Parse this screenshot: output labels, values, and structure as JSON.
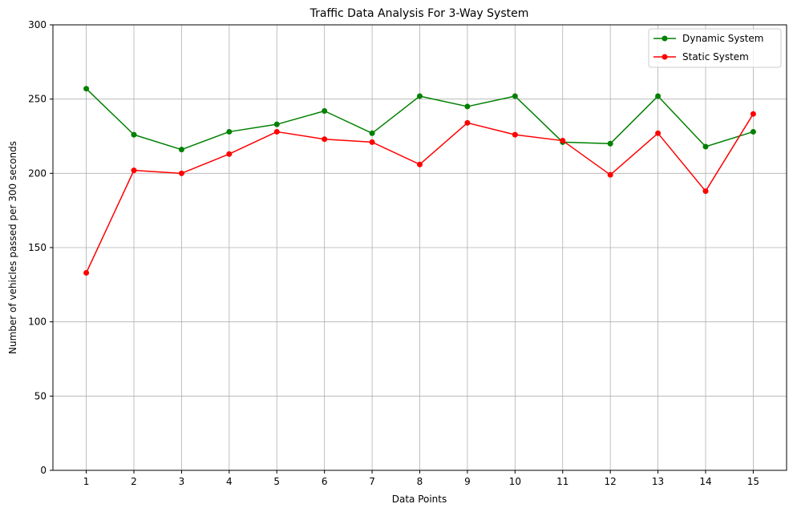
{
  "chart_data": {
    "type": "line",
    "title": "Traffic Data Analysis For 3-Way System",
    "xlabel": "Data Points",
    "ylabel": "Number of vehicles passed per 300 seconds",
    "x": [
      1,
      2,
      3,
      4,
      5,
      6,
      7,
      8,
      9,
      10,
      11,
      12,
      13,
      14,
      15
    ],
    "xlim": [
      0.3,
      15.7
    ],
    "ylim": [
      0,
      300
    ],
    "yticks": [
      0,
      50,
      100,
      150,
      200,
      250,
      300
    ],
    "grid": true,
    "legend_position": "top-right",
    "series": [
      {
        "name": "Dynamic System",
        "color": "#008000",
        "marker": "circle",
        "values": [
          257,
          226,
          216,
          228,
          233,
          242,
          227,
          252,
          245,
          252,
          221,
          220,
          252,
          218,
          228
        ]
      },
      {
        "name": "Static System",
        "color": "#ff0000",
        "marker": "circle",
        "values": [
          133,
          202,
          200,
          213,
          228,
          223,
          221,
          206,
          234,
          226,
          222,
          199,
          227,
          188,
          240
        ]
      }
    ]
  }
}
